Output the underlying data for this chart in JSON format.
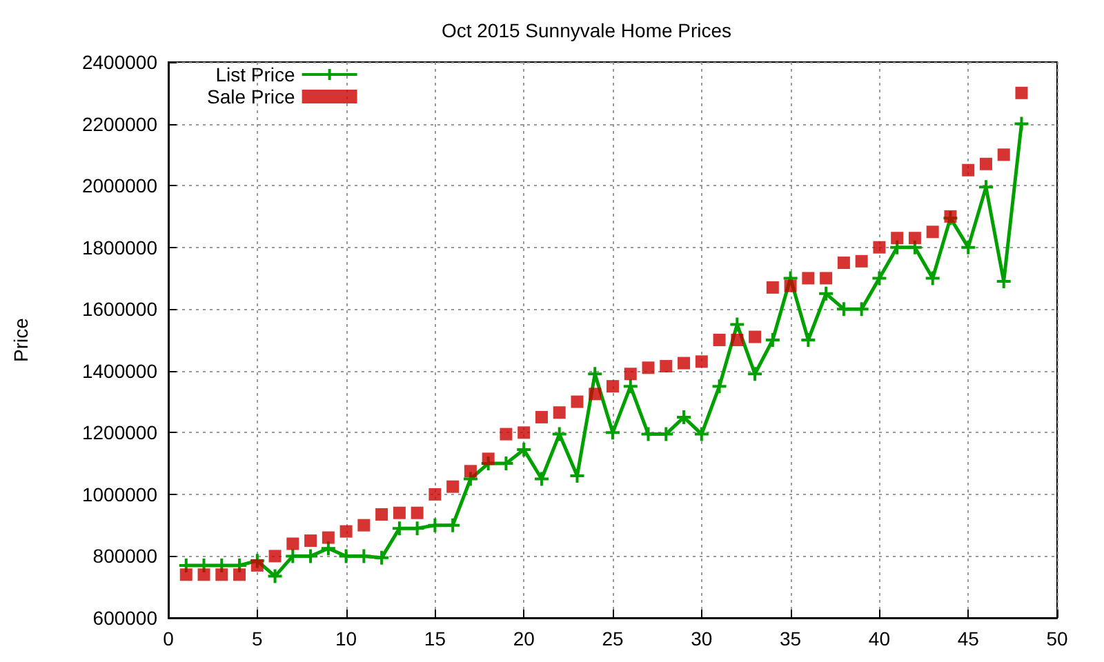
{
  "chart_data": {
    "type": "line",
    "title": "Oct 2015 Sunnyvale Home Prices",
    "ylabel": "Price",
    "x": [
      1,
      2,
      3,
      4,
      5,
      6,
      7,
      8,
      9,
      10,
      11,
      12,
      13,
      14,
      15,
      16,
      17,
      18,
      19,
      20,
      21,
      22,
      23,
      24,
      25,
      26,
      27,
      28,
      29,
      30,
      31,
      32,
      33,
      34,
      35,
      36,
      37,
      38,
      39,
      40,
      41,
      42,
      43,
      44,
      45,
      46,
      47,
      48
    ],
    "series": [
      {
        "name": "List Price",
        "color": "#00a000",
        "marker": "cross",
        "line_style": "solid",
        "values": [
          770000,
          770000,
          770000,
          770000,
          785000,
          735000,
          800000,
          800000,
          825000,
          800000,
          800000,
          795000,
          890000,
          890000,
          900000,
          900000,
          1050000,
          1100000,
          1100000,
          1145000,
          1050000,
          1195000,
          1060000,
          1390000,
          1200000,
          1350000,
          1195000,
          1195000,
          1250000,
          1195000,
          1350000,
          1550000,
          1390000,
          1500000,
          1700000,
          1500000,
          1650000,
          1600000,
          1600000,
          1700000,
          1800000,
          1800000,
          1700000,
          1895000,
          1800000,
          1995000,
          1690000,
          2200000
        ]
      },
      {
        "name": "Sale Price",
        "type": "scatter",
        "color": "#cc0000",
        "marker": "square",
        "values": [
          740000,
          740000,
          740000,
          740000,
          770000,
          800000,
          840000,
          850000,
          860000,
          880000,
          900000,
          935000,
          940000,
          940000,
          1000000,
          1025000,
          1075000,
          1115000,
          1195000,
          1200000,
          1250000,
          1265000,
          1300000,
          1325000,
          1350000,
          1390000,
          1410000,
          1415000,
          1425000,
          1430000,
          1500000,
          1500000,
          1510000,
          1670000,
          1675000,
          1700000,
          1700000,
          1750000,
          1755000,
          1800000,
          1830000,
          1830000,
          1850000,
          1900000,
          2050000,
          2070000,
          2100000,
          2300000
        ]
      }
    ],
    "xlim": [
      0,
      50
    ],
    "xticks": [
      0,
      5,
      10,
      15,
      20,
      25,
      30,
      35,
      40,
      45,
      50
    ],
    "ylim": [
      600000,
      2400000
    ],
    "yticks": [
      600000,
      800000,
      1000000,
      1200000,
      1400000,
      1600000,
      1800000,
      2000000,
      2200000,
      2400000
    ],
    "grid": true,
    "legend": "top left"
  }
}
